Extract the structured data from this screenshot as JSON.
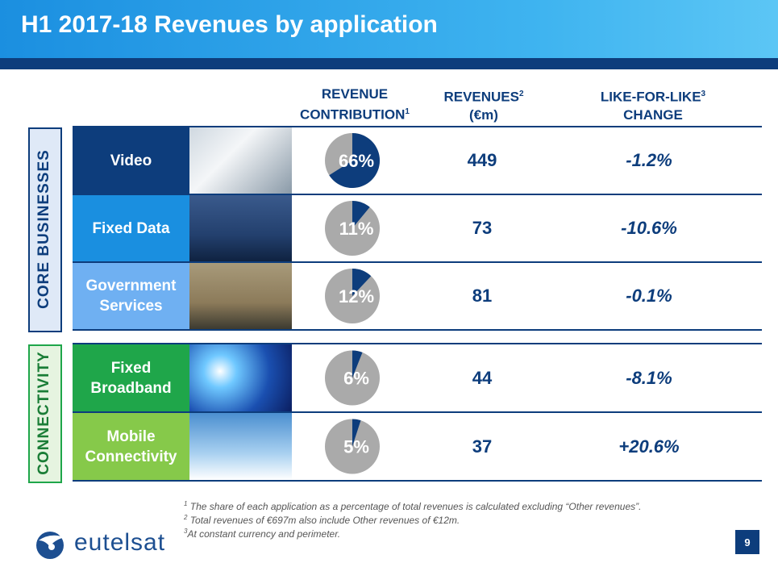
{
  "header": {
    "title": "H1 2017-18 Revenues by application"
  },
  "table": {
    "columns": [
      {
        "lines": [
          {
            "text": "REVENUE"
          },
          {
            "text": "CONTRIBUTION",
            "note": "1"
          }
        ]
      },
      {
        "lines": [
          {
            "text": "REVENUES",
            "note": "2"
          },
          {
            "text": "(€m)"
          }
        ]
      },
      {
        "lines": [
          {
            "text": "LIKE-FOR-LIKE",
            "note": "3"
          },
          {
            "text": "CHANGE"
          }
        ]
      }
    ],
    "groups": [
      {
        "label": "CORE BUSINESSES",
        "rows": [
          {
            "name": "Video",
            "contribution": {
              "value": 66,
              "label": "66%"
            },
            "revenue": 449,
            "change": "-1.2%"
          },
          {
            "name": "Fixed Data",
            "contribution": {
              "value": 11,
              "label": "11%"
            },
            "revenue": 73,
            "change": "-10.6%"
          },
          {
            "name": "Government Services",
            "contribution": {
              "value": 12,
              "label": "12%"
            },
            "revenue": 81,
            "change": "-0.1%"
          }
        ]
      },
      {
        "label": "CONNECTIVITY",
        "rows": [
          {
            "name": "Fixed Broadband",
            "contribution": {
              "value": 6,
              "label": "6%"
            },
            "revenue": 44,
            "change": "-8.1%"
          },
          {
            "name": "Mobile Connectivity",
            "contribution": {
              "value": 5,
              "label": "5%"
            },
            "revenue": 37,
            "change": "+20.6%"
          }
        ]
      }
    ]
  },
  "footnotes": [
    {
      "note": "1",
      "text": "The share of each application as a percentage of total revenues is calculated excluding “Other revenues”."
    },
    {
      "note": "2",
      "text": "Total revenues of €697m also include Other revenues of €12m."
    },
    {
      "note": "3",
      "text": "At constant currency  and perimeter."
    }
  ],
  "logo": {
    "text": "eutelsat"
  },
  "page_number": "9"
}
